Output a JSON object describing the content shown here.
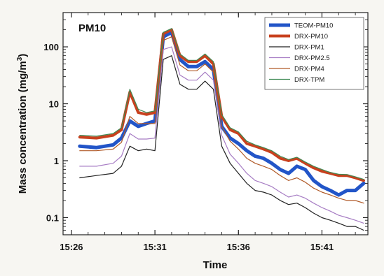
{
  "chart_data": {
    "type": "line",
    "title": "",
    "panel_label": "PM10",
    "xlabel": "Time",
    "ylabel": "Mass concentration (mg/m3)",
    "ylabel_main": "Mass concentration (mg/m",
    "ylabel_sup": "3",
    "ylabel_close": ")",
    "y_scale": "log",
    "ylim": [
      0.05,
      400
    ],
    "y_ticks": [
      {
        "value": 0.1,
        "label": "0.1"
      },
      {
        "value": 1,
        "label": "1"
      },
      {
        "value": 10,
        "label": "10"
      },
      {
        "value": 100,
        "label": "100"
      }
    ],
    "xlim": [
      "15:25:30",
      "15:43:45"
    ],
    "x_ticks": [
      {
        "value": "15:26",
        "label": "15:26"
      },
      {
        "value": "15:31",
        "label": "15:31"
      },
      {
        "value": "15:36",
        "label": "15:36"
      },
      {
        "value": "15:41",
        "label": "15:41"
      }
    ],
    "grid": false,
    "legend_position": "top-right",
    "x": [
      "15:26:30",
      "15:27:30",
      "15:28:30",
      "15:29:00",
      "15:29:30",
      "15:30:00",
      "15:30:30",
      "15:31:00",
      "15:31:30",
      "15:32:00",
      "15:32:30",
      "15:33:00",
      "15:33:30",
      "15:34:00",
      "15:34:30",
      "15:35:00",
      "15:35:30",
      "15:36:00",
      "15:36:30",
      "15:37:00",
      "15:37:30",
      "15:38:00",
      "15:38:30",
      "15:39:00",
      "15:39:30",
      "15:40:00",
      "15:40:30",
      "15:41:00",
      "15:41:30",
      "15:42:00",
      "15:42:30",
      "15:43:00",
      "15:43:30"
    ],
    "series": [
      {
        "name": "TEOM-PM10",
        "color": "#2255c8",
        "width": 5,
        "values": [
          1.8,
          1.7,
          1.9,
          2.5,
          5,
          4,
          4.5,
          5,
          150,
          180,
          60,
          45,
          45,
          55,
          40,
          4,
          2.5,
          2,
          1.5,
          1.2,
          1.1,
          0.9,
          0.7,
          0.6,
          0.8,
          0.7,
          0.45,
          0.35,
          0.3,
          0.25,
          0.3,
          0.3,
          0.4
        ]
      },
      {
        "name": "DRX-PM10",
        "color": "#c8411e",
        "width": 4,
        "values": [
          2.6,
          2.5,
          2.8,
          3.5,
          16,
          7,
          6.5,
          7,
          170,
          200,
          70,
          55,
          55,
          70,
          50,
          6,
          3.5,
          3,
          2,
          1.8,
          1.6,
          1.4,
          1.1,
          1,
          1.1,
          0.9,
          0.75,
          0.65,
          0.6,
          0.55,
          0.55,
          0.5,
          0.45
        ]
      },
      {
        "name": "DRX-PM1",
        "color": "#222222",
        "width": 1.2,
        "values": [
          0.5,
          0.55,
          0.6,
          0.8,
          1.8,
          1.5,
          1.6,
          1.5,
          60,
          70,
          22,
          18,
          18,
          25,
          18,
          1.8,
          0.9,
          0.6,
          0.4,
          0.3,
          0.28,
          0.25,
          0.2,
          0.17,
          0.18,
          0.15,
          0.12,
          0.1,
          0.09,
          0.08,
          0.07,
          0.07,
          0.06
        ]
      },
      {
        "name": "DRX-PM2.5",
        "color": "#a77dc4",
        "width": 1.2,
        "values": [
          0.8,
          0.8,
          0.9,
          1.2,
          3,
          2.4,
          2.4,
          2.5,
          90,
          100,
          32,
          26,
          26,
          36,
          26,
          2.8,
          1.3,
          0.9,
          0.6,
          0.45,
          0.4,
          0.35,
          0.28,
          0.23,
          0.25,
          0.22,
          0.18,
          0.15,
          0.13,
          0.11,
          0.1,
          0.09,
          0.08
        ]
      },
      {
        "name": "DRX-PM4",
        "color": "#b05a28",
        "width": 1.2,
        "values": [
          1.5,
          1.5,
          1.6,
          2.1,
          6,
          4.5,
          4.5,
          4.5,
          130,
          150,
          48,
          38,
          38,
          50,
          36,
          4,
          2.2,
          1.6,
          1.1,
          0.9,
          0.8,
          0.7,
          0.55,
          0.45,
          0.5,
          0.42,
          0.33,
          0.28,
          0.25,
          0.22,
          0.2,
          0.2,
          0.18
        ]
      },
      {
        "name": "DRX-TPM",
        "color": "#3f8a54",
        "width": 1.2,
        "values": [
          2.8,
          2.7,
          3,
          3.8,
          18,
          8,
          7,
          7.5,
          180,
          210,
          75,
          58,
          58,
          75,
          55,
          6.5,
          3.8,
          3.2,
          2.2,
          1.9,
          1.7,
          1.5,
          1.2,
          1.05,
          1.15,
          0.95,
          0.8,
          0.7,
          0.62,
          0.58,
          0.57,
          0.52,
          0.47
        ]
      }
    ]
  }
}
